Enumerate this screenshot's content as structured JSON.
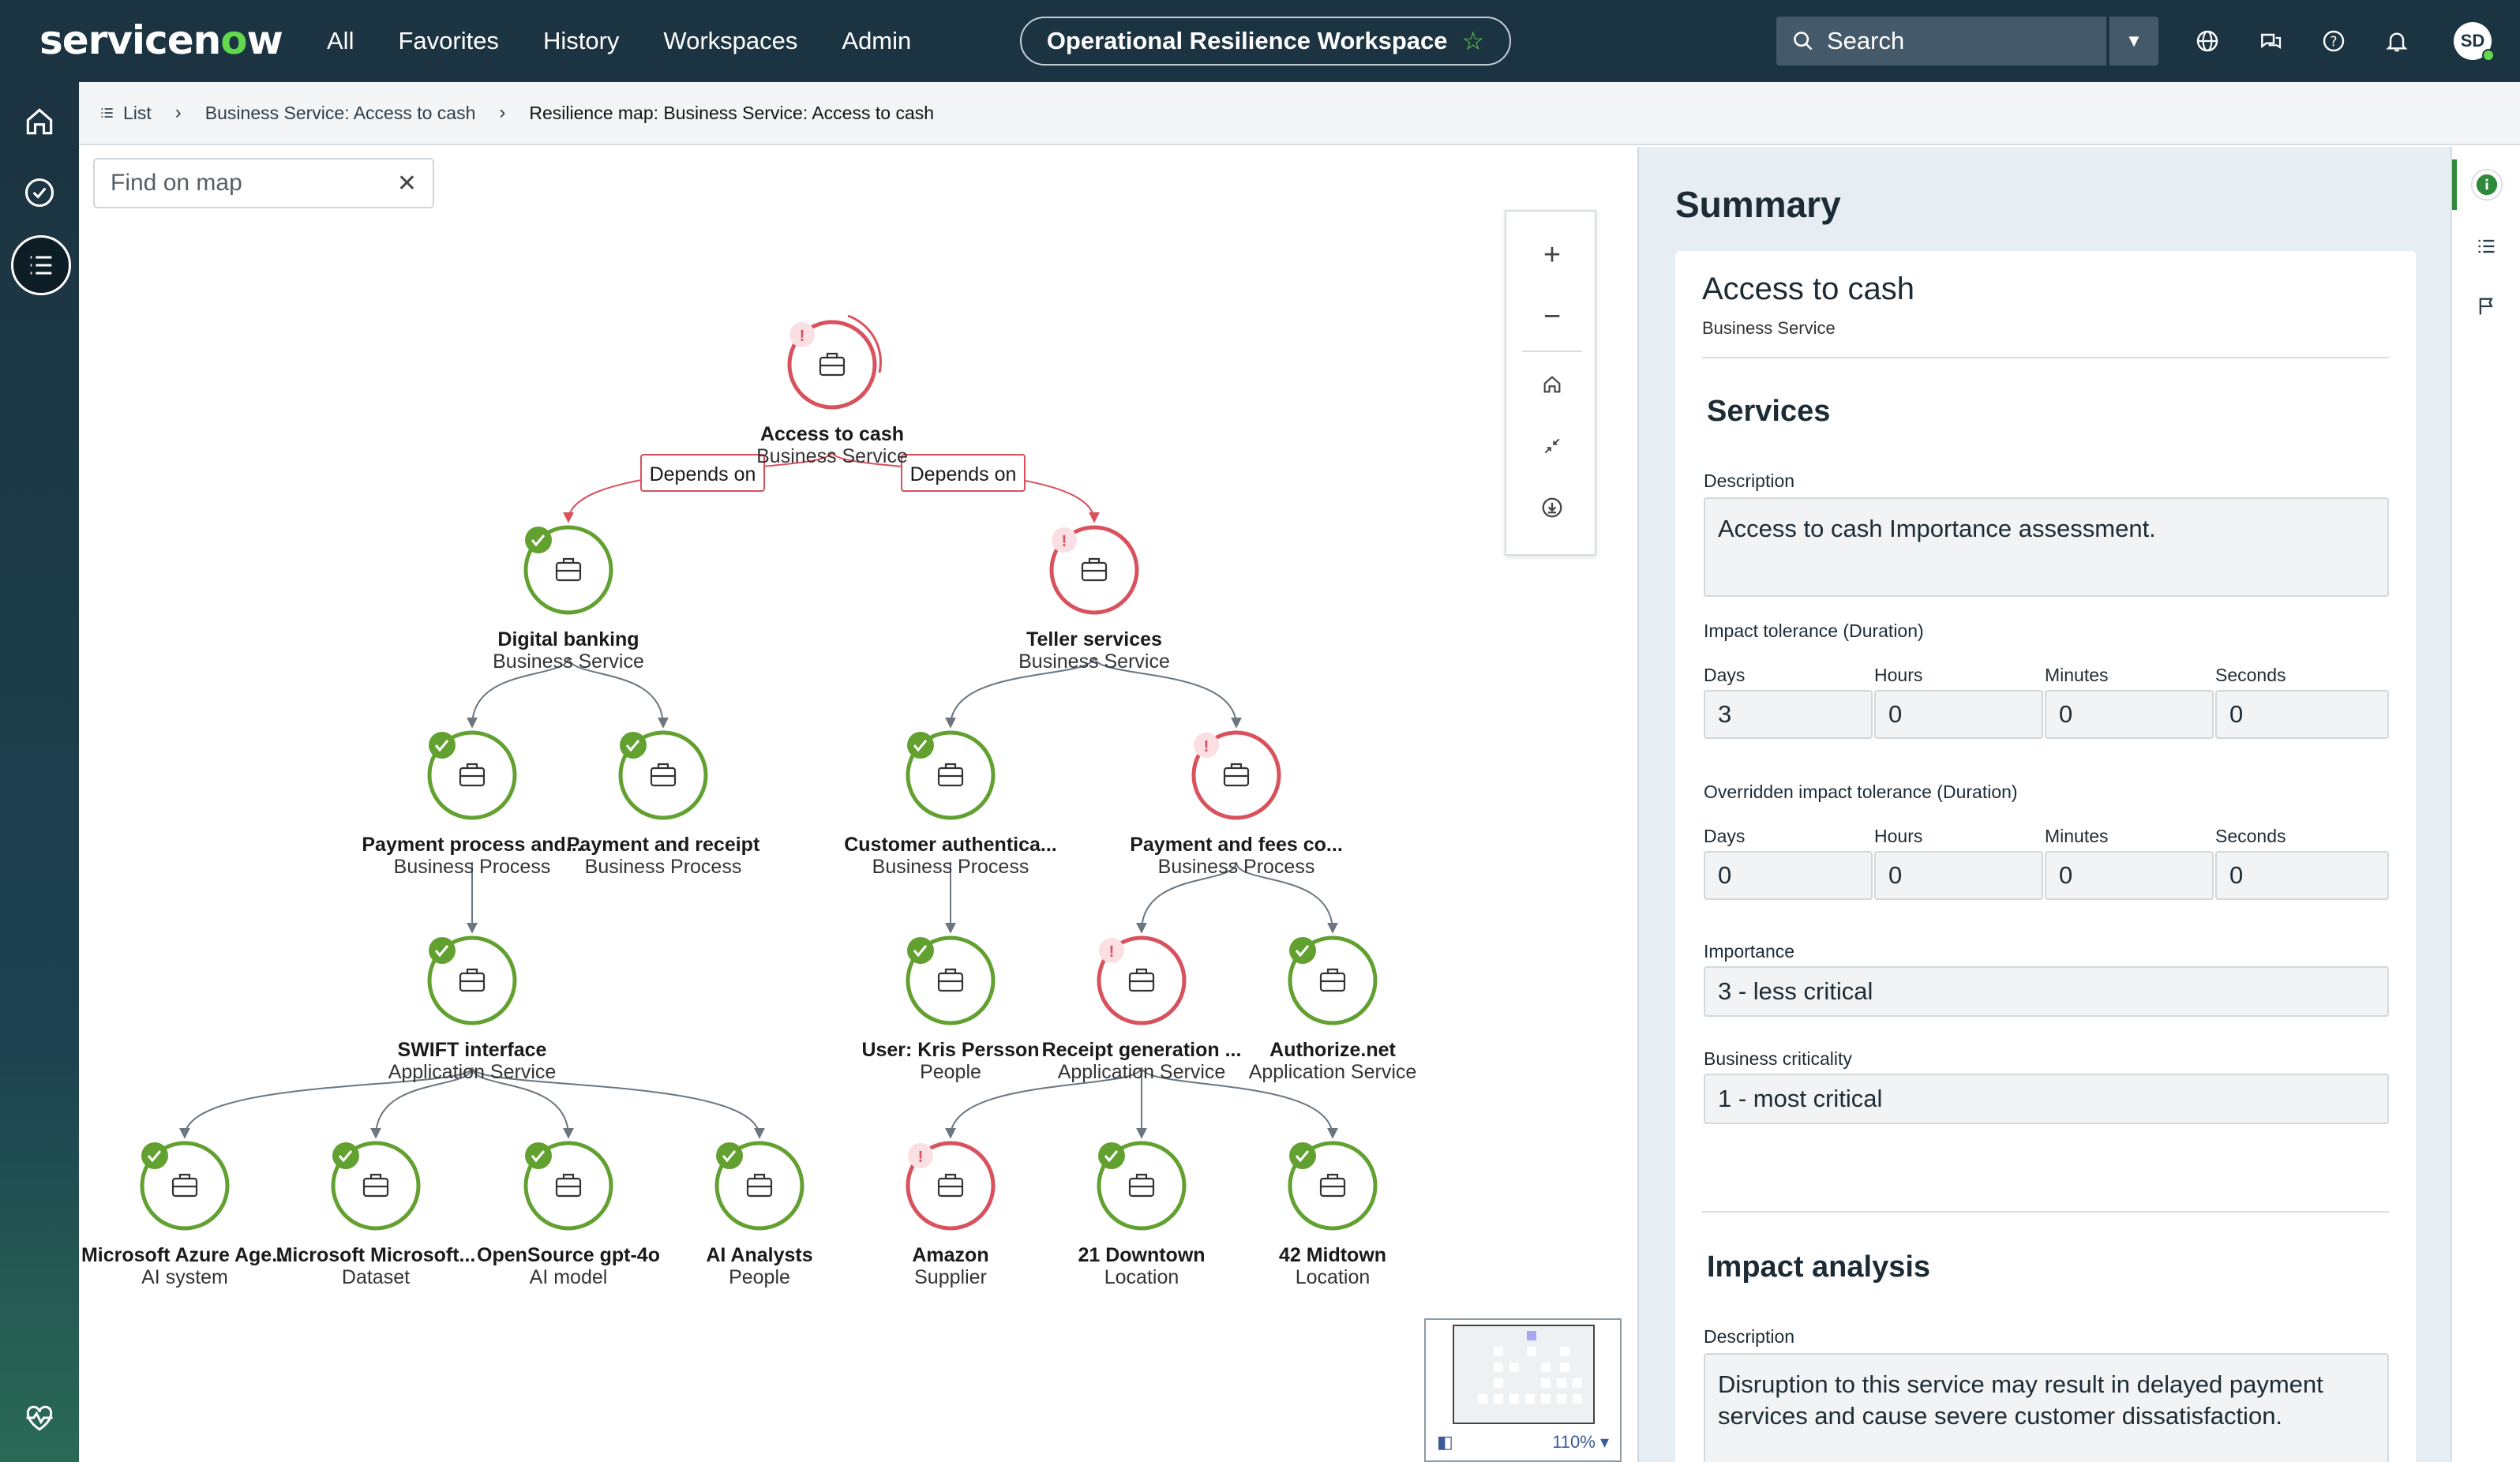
{
  "topnav": {
    "logo": "servicenow",
    "links": [
      "All",
      "Favorites",
      "History",
      "Workspaces",
      "Admin"
    ],
    "workspace": "Operational Resilience Workspace",
    "search_placeholder": "Search",
    "avatar_initials": "SD"
  },
  "breadcrumb": {
    "list_label": "List",
    "items": [
      "Business Service: Access to cash",
      "Resilience map: Business Service: Access to cash"
    ]
  },
  "map": {
    "find_placeholder": "Find on map",
    "zoom_level": "110%",
    "edge_labels": [
      "Depends on",
      "Depends on"
    ],
    "nodes": [
      {
        "id": "root",
        "label": "Access to cash",
        "type": "Business Service",
        "status": "warning"
      },
      {
        "id": "db",
        "label": "Digital banking",
        "type": "Business Service",
        "status": "ok"
      },
      {
        "id": "ts",
        "label": "Teller services",
        "type": "Business Service",
        "status": "warning"
      },
      {
        "id": "pp",
        "label": "Payment process and...",
        "type": "Business Process",
        "status": "ok"
      },
      {
        "id": "pr",
        "label": "Payment and receipt",
        "type": "Business Process",
        "status": "ok"
      },
      {
        "id": "ca",
        "label": "Customer authentica...",
        "type": "Business Process",
        "status": "ok"
      },
      {
        "id": "pf",
        "label": "Payment and fees co...",
        "type": "Business Process",
        "status": "warning"
      },
      {
        "id": "sw",
        "label": "SWIFT interface",
        "type": "Application Service",
        "status": "ok"
      },
      {
        "id": "kp",
        "label": "User: Kris Persson",
        "type": "People",
        "status": "ok"
      },
      {
        "id": "rg",
        "label": "Receipt generation ...",
        "type": "Application Service",
        "status": "warning"
      },
      {
        "id": "an",
        "label": "Authorize.net",
        "type": "Application Service",
        "status": "ok"
      },
      {
        "id": "ma",
        "label": "Microsoft Azure Age...",
        "type": "AI system",
        "status": "ok"
      },
      {
        "id": "mm",
        "label": "Microsoft Microsoft...",
        "type": "Dataset",
        "status": "ok"
      },
      {
        "id": "og",
        "label": "OpenSource gpt-4o",
        "type": "AI model",
        "status": "ok"
      },
      {
        "id": "aa",
        "label": "AI Analysts",
        "type": "People",
        "status": "ok"
      },
      {
        "id": "am",
        "label": "Amazon",
        "type": "Supplier",
        "status": "warning"
      },
      {
        "id": "d21",
        "label": "21 Downtown",
        "type": "Location",
        "status": "ok"
      },
      {
        "id": "m42",
        "label": "42 Midtown",
        "type": "Location",
        "status": "ok"
      }
    ]
  },
  "summary": {
    "title": "Summary",
    "record_name": "Access to cash",
    "record_type": "Business Service",
    "services": {
      "title": "Services",
      "description_label": "Description",
      "description": "Access to cash Importance assessment.",
      "impact_tolerance_label": "Impact tolerance (Duration)",
      "overridden_label": "Overridden impact tolerance (Duration)",
      "unit_labels": [
        "Days",
        "Hours",
        "Minutes",
        "Seconds"
      ],
      "impact_values": [
        "3",
        "0",
        "0",
        "0"
      ],
      "overridden_values": [
        "0",
        "0",
        "0",
        "0"
      ],
      "importance_label": "Importance",
      "importance": "3 - less critical",
      "criticality_label": "Business criticality",
      "criticality": "1 - most critical"
    },
    "impact": {
      "title": "Impact analysis",
      "description_label": "Description",
      "description": "Disruption to this service may result in delayed payment services and cause severe customer dissatisfaction."
    }
  },
  "colors": {
    "ok": "#62a030",
    "warning": "#d9515c",
    "nav": "#1c3341"
  }
}
